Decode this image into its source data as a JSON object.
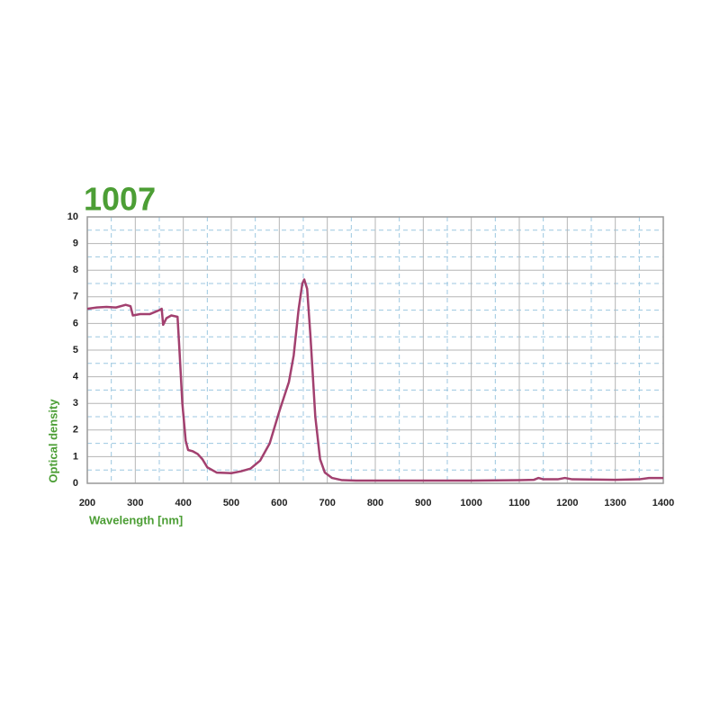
{
  "chart_data": {
    "type": "line",
    "title": "1007",
    "x_label": "Wavelength [nm]",
    "y_label": "Optical density",
    "x": [
      200,
      220,
      240,
      260,
      280,
      290,
      295,
      310,
      330,
      350,
      355,
      358,
      365,
      375,
      388,
      392,
      398,
      405,
      410,
      420,
      430,
      440,
      450,
      470,
      500,
      520,
      540,
      560,
      580,
      600,
      620,
      630,
      640,
      648,
      652,
      658,
      665,
      675,
      685,
      695,
      710,
      730,
      760,
      800,
      900,
      1000,
      1100,
      1130,
      1140,
      1150,
      1180,
      1195,
      1210,
      1300,
      1350,
      1370,
      1400
    ],
    "series": [
      {
        "name": "1007",
        "color": "#a2406f",
        "values": [
          6.55,
          6.6,
          6.62,
          6.6,
          6.7,
          6.65,
          6.3,
          6.35,
          6.35,
          6.5,
          6.55,
          5.95,
          6.2,
          6.3,
          6.25,
          5.0,
          3.0,
          1.6,
          1.25,
          1.2,
          1.1,
          0.9,
          0.6,
          0.4,
          0.38,
          0.45,
          0.55,
          0.85,
          1.5,
          2.7,
          3.8,
          4.8,
          6.5,
          7.5,
          7.65,
          7.3,
          5.5,
          2.5,
          0.9,
          0.4,
          0.2,
          0.12,
          0.1,
          0.1,
          0.1,
          0.1,
          0.12,
          0.13,
          0.2,
          0.15,
          0.15,
          0.2,
          0.15,
          0.13,
          0.15,
          0.2,
          0.2
        ]
      }
    ],
    "xlim": [
      200,
      1400
    ],
    "ylim": [
      0,
      10
    ],
    "xticks": [
      200,
      300,
      400,
      500,
      600,
      700,
      800,
      900,
      1000,
      1100,
      1200,
      1300,
      1400
    ],
    "yticks": [
      0,
      1,
      2,
      3,
      4,
      5,
      6,
      7,
      8,
      9,
      10
    ],
    "grid": true
  }
}
